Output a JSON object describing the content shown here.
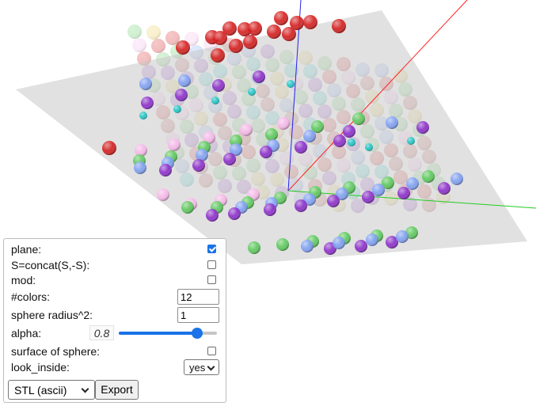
{
  "scene": {
    "plane_color": "#c8c8c8",
    "axis_x_color": "#ff2020",
    "axis_y_color": "#22cc22",
    "axis_z_color": "#2222ee",
    "sphere_palette": [
      "#d41a1a",
      "#8b2fc9",
      "#7fa0f2",
      "#5cc95c",
      "#f5b8e8",
      "#e8c84a",
      "#20c4c4",
      "#c04040"
    ]
  },
  "controls": {
    "plane": {
      "label": "plane:",
      "checked": true
    },
    "concat": {
      "label": "S=concat(S,-S):",
      "checked": false
    },
    "mod": {
      "label": "mod:",
      "checked": false
    },
    "colors": {
      "label": "#colors:",
      "value": "12"
    },
    "radius": {
      "label": "sphere radius^2:",
      "value": "1"
    },
    "alpha": {
      "label": "alpha:",
      "value": "0.8",
      "level": 0.8
    },
    "surface": {
      "label": "surface of sphere:",
      "checked": false
    },
    "look_inside": {
      "label": "look_inside:",
      "selected": "yes"
    },
    "export_format": {
      "selected": "STL (ascii)"
    },
    "export_button": {
      "label": "Export"
    }
  }
}
